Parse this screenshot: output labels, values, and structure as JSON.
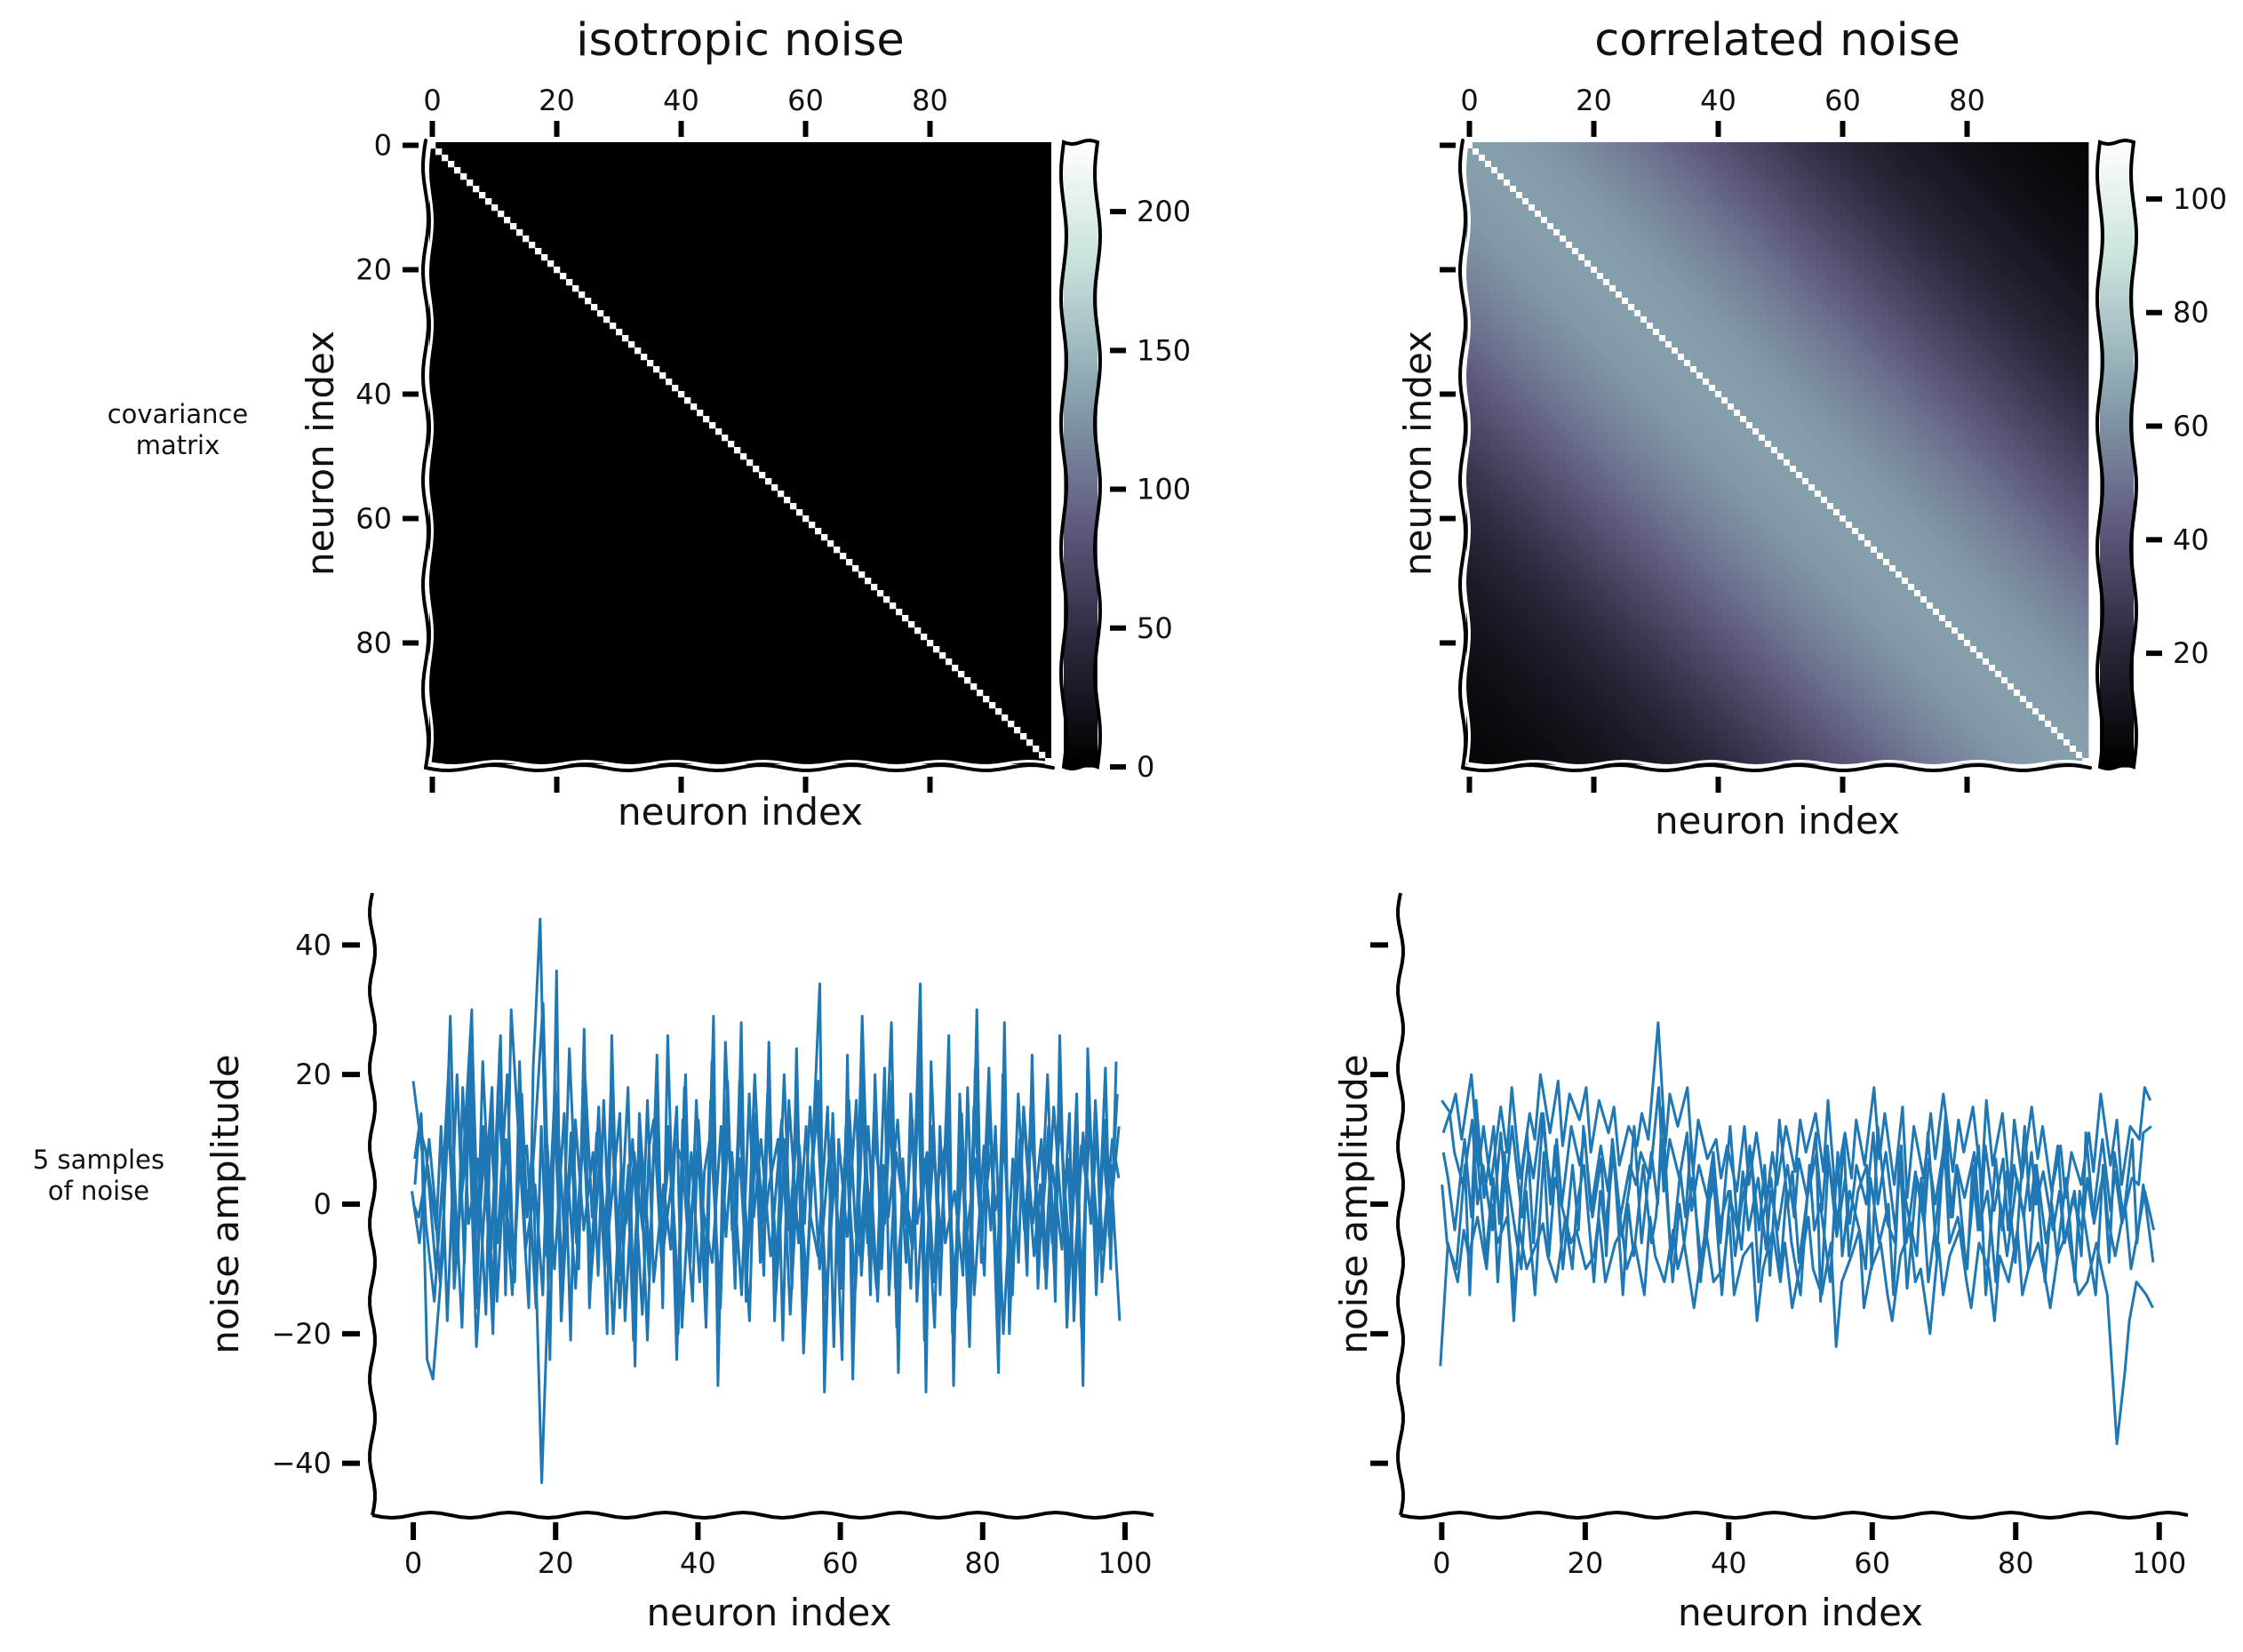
{
  "figure": {
    "row_labels": [
      [
        "covariance",
        "matrix"
      ],
      [
        "5 samples",
        "of noise"
      ]
    ]
  },
  "chart_data": [
    {
      "panel": "isotropic-covariance",
      "type": "heatmap",
      "title": "isotropic noise",
      "xlabel": "neuron index",
      "ylabel": "neuron index",
      "n": 100,
      "x_ticks": [
        0,
        20,
        40,
        60,
        80
      ],
      "y_ticks": [
        0,
        20,
        40,
        60,
        80
      ],
      "x_tick_labels_position": "top",
      "diagonal_value": 225,
      "off_diagonal_value": 0,
      "colorbar": {
        "min": 0,
        "max": 225,
        "ticks": [
          0,
          50,
          100,
          150,
          200
        ]
      },
      "colormap": [
        "#000000",
        "#2b2a3e",
        "#625f83",
        "#8aa5b0",
        "#c7e0dc",
        "#ffffff"
      ]
    },
    {
      "panel": "correlated-covariance",
      "type": "heatmap",
      "title": "correlated noise",
      "xlabel": "neuron index",
      "ylabel": "neuron index",
      "n": 100,
      "x_ticks": [
        0,
        20,
        40,
        60,
        80
      ],
      "y_ticks": [
        0,
        20,
        40,
        60,
        80
      ],
      "x_tick_labels_position": "top",
      "y_tick_labels_shown": false,
      "diagonal_value": 110,
      "near_diagonal_value": 64,
      "decay_length": 40,
      "colorbar": {
        "min": 0,
        "max": 110,
        "ticks": [
          20,
          40,
          60,
          80,
          100
        ]
      },
      "colormap": [
        "#000000",
        "#2b2a3e",
        "#625f83",
        "#8aa5b0",
        "#c7e0dc",
        "#ffffff"
      ]
    },
    {
      "panel": "isotropic-samples",
      "type": "line",
      "xlabel": "neuron index",
      "ylabel": "noise amplitude",
      "xlim": [
        -5,
        104
      ],
      "ylim": [
        -48,
        48
      ],
      "x_ticks": [
        0,
        20,
        40,
        60,
        80,
        100
      ],
      "y_ticks": [
        -40,
        -20,
        0,
        20,
        40
      ],
      "y_tick_labels": [
        "−40",
        "−20",
        "0",
        "20",
        "40"
      ],
      "line_color": "#1f77b4",
      "series": [
        {
          "values": [
            19,
            8,
            -24,
            -27,
            -8,
            29,
            3,
            -19,
            28,
            -5,
            22,
            -7,
            26,
            -14,
            30,
            5,
            -16,
            21,
            44,
            -24,
            36,
            -18,
            24,
            -10,
            27,
            -16,
            15,
            -20,
            26,
            -12,
            18,
            -25,
            11,
            -21,
            23,
            -16,
            26,
            -24,
            20,
            -9,
            16,
            -19,
            29,
            -28,
            25,
            -13,
            28,
            -15,
            20,
            -11,
            25,
            -18,
            20,
            -13,
            24,
            -23,
            11,
            34,
            -29,
            14,
            -24,
            23,
            -27,
            29,
            -14,
            20,
            -10,
            28,
            -26,
            7,
            -13,
            34,
            -29,
            22,
            -14,
            26,
            -28,
            17,
            -22,
            30,
            -9,
            21,
            -26,
            28,
            -20,
            17,
            -11,
            23,
            -13,
            20,
            -15,
            26,
            -19,
            17,
            -28,
            24,
            -14,
            21,
            -10,
            22
          ]
        },
        {
          "values": [
            7,
            14,
            -3,
            -15,
            6,
            21,
            -13,
            8,
            30,
            -16,
            12,
            -20,
            24,
            4,
            -14,
            17,
            -2,
            9,
            -43,
            -4,
            19,
            -18,
            11,
            -9,
            16,
            -13,
            8,
            -7,
            17,
            -16,
            6,
            -21,
            14,
            -11,
            20,
            -8,
            12,
            -20,
            18,
            -5,
            9,
            -14,
            22,
            -20,
            15,
            -7,
            19,
            -10,
            12,
            -3,
            17,
            -14,
            10,
            -6,
            15,
            -17,
            8,
            19,
            -20,
            7,
            -13,
            12,
            -18,
            21,
            -8,
            14,
            -4,
            19,
            -19,
            3,
            -7,
            25,
            -21,
            12,
            -8,
            18,
            -20,
            10,
            -15,
            21,
            -4,
            13,
            -18,
            20,
            -14,
            10,
            -6,
            15,
            -7,
            12,
            -9,
            18,
            -13,
            10,
            -19,
            16,
            -8,
            13,
            -5,
            17
          ]
        },
        {
          "values": [
            3,
            12,
            8,
            -10,
            4,
            16,
            -8,
            6,
            22,
            -11,
            9,
            -14,
            18,
            2,
            -10,
            12,
            -1,
            7,
            31,
            -2,
            14,
            -12,
            8,
            -6,
            11,
            -9,
            6,
            -5,
            12,
            -11,
            4,
            -15,
            10,
            -8,
            14,
            -6,
            9,
            -14,
            13,
            -3,
            7,
            -10,
            16,
            -14,
            11,
            -5,
            14,
            -7,
            9,
            -2,
            12,
            -10,
            7,
            -4,
            11,
            -12,
            6,
            14,
            -14,
            5,
            -9,
            9,
            -13,
            15,
            -6,
            10,
            -3,
            14,
            -13,
            2,
            -5,
            18,
            -15,
            9,
            -6,
            13,
            -14,
            7,
            -11,
            15,
            -3,
            9,
            -13,
            14,
            -10,
            7,
            -4,
            11,
            -5,
            9,
            -6,
            13,
            -9,
            7,
            -14,
            12,
            -6,
            9,
            -3,
            12
          ]
        },
        {
          "values": [
            0,
            -2,
            6,
            -4,
            12,
            -18,
            20,
            -9,
            15,
            -22,
            4,
            18,
            -15,
            10,
            -12,
            22,
            -7,
            3,
            -14,
            9,
            -10,
            14,
            -21,
            13,
            -4,
            8,
            -11,
            16,
            -20,
            6,
            -3,
            10,
            -17,
            9,
            13,
            -9,
            3,
            15,
            -19,
            8,
            -12,
            5,
            11,
            -16,
            19,
            -4,
            7,
            -18,
            14,
            -9,
            3,
            10,
            -21,
            16,
            -6,
            12,
            -2,
            -8,
            15,
            -22,
            10,
            -5,
            16,
            -11,
            4,
            -13,
            21,
            -14,
            8,
            -3,
            13,
            -15,
            7,
            -19,
            12,
            -6,
            2,
            -11,
            18,
            -14,
            9,
            -4,
            12,
            -20,
            7,
            -9,
            15,
            -3,
            10,
            -13,
            6,
            -7,
            14,
            -18,
            9,
            -2,
            11,
            -12,
            6,
            -18
          ]
        },
        {
          "values": [
            2,
            -6,
            10,
            0,
            -12,
            14,
            -9,
            18,
            -3,
            7,
            -17,
            13,
            -6,
            20,
            -11,
            4,
            9,
            -16,
            12,
            -8,
            17,
            -5,
            2,
            -13,
            19,
            -2,
            11,
            -10,
            5,
            14,
            -18,
            8,
            -4,
            16,
            -12,
            3,
            -7,
            10,
            6,
            -15,
            13,
            -1,
            -9,
            12,
            -5,
            8,
            -14,
            17,
            -2,
            10,
            -8,
            4,
            13,
            -17,
            9,
            -3,
            15,
            -10,
            5,
            11,
            -6,
            16,
            -4,
            -8,
            12,
            -15,
            6,
            -2,
            13,
            -9,
            17,
            -3,
            8,
            -12,
            4,
            10,
            -16,
            14,
            -5,
            7,
            -11,
            16,
            -1,
            9,
            -14,
            5,
            12,
            -8,
            3,
            -10,
            15,
            -4,
            7,
            -12,
            11,
            -3,
            16,
            -7,
            10,
            4
          ]
        }
      ]
    },
    {
      "panel": "correlated-samples",
      "type": "line",
      "xlabel": "neuron index",
      "ylabel": "noise amplitude",
      "xlim": [
        -5,
        104
      ],
      "ylim": [
        -48,
        48
      ],
      "x_ticks": [
        0,
        20,
        40,
        60,
        80,
        100
      ],
      "y_ticks": [
        -40,
        -20,
        0,
        20,
        40
      ],
      "y_tick_labels_shown": false,
      "line_color": "#1f77b4",
      "series": [
        {
          "values": [
            16,
            14,
            17,
            10,
            20,
            6,
            12,
            3,
            15,
            8,
            18,
            4,
            14,
            10,
            20,
            11,
            19,
            9,
            17,
            13,
            18,
            8,
            16,
            11,
            15,
            6,
            12,
            9,
            14,
            10,
            28,
            9,
            17,
            12,
            18,
            5,
            13,
            7,
            10,
            4,
            9,
            2,
            12,
            3,
            11,
            0,
            8,
            3,
            12,
            5,
            13,
            8,
            14,
            5,
            16,
            2,
            11,
            4,
            13,
            6,
            18,
            7,
            14,
            3,
            15,
            1,
            12,
            4,
            14,
            7,
            17,
            5,
            13,
            8,
            15,
            3,
            16,
            6,
            14,
            2,
            13,
            4,
            15,
            7,
            12,
            2,
            9,
            1,
            8,
            3,
            11,
            5,
            17,
            6,
            13,
            3,
            12,
            10,
            18,
            16
          ]
        },
        {
          "values": [
            11,
            14,
            8,
            3,
            13,
            0,
            6,
            -4,
            11,
            2,
            12,
            -2,
            8,
            4,
            14,
            2,
            10,
            0,
            12,
            6,
            11,
            -1,
            9,
            2,
            10,
            -2,
            6,
            3,
            8,
            4,
            18,
            2,
            10,
            4,
            11,
            -1,
            6,
            0,
            4,
            -3,
            2,
            -4,
            5,
            -4,
            4,
            -7,
            2,
            -4,
            6,
            -2,
            7,
            1,
            8,
            -1,
            9,
            -5,
            4,
            -3,
            6,
            0,
            11,
            0,
            8,
            -4,
            9,
            -6,
            5,
            -3,
            7,
            0,
            10,
            -2,
            6,
            1,
            8,
            -4,
            9,
            -1,
            7,
            -4,
            6,
            -2,
            8,
            0,
            5,
            -4,
            2,
            -6,
            1,
            -4,
            4,
            -2,
            10,
            -1,
            5,
            -3,
            4,
            3,
            11,
            12
          ]
        },
        {
          "values": [
            8,
            4,
            -4,
            10,
            -2,
            16,
            1,
            12,
            -3,
            8,
            -18,
            5,
            11,
            -6,
            14,
            0,
            9,
            -10,
            6,
            -4,
            12,
            -2,
            7,
            -8,
            10,
            -5,
            3,
            12,
            -6,
            8,
            0,
            15,
            -9,
            5,
            -2,
            10,
            -12,
            3,
            8,
            -6,
            12,
            -2,
            -7,
            9,
            -4,
            6,
            -11,
            13,
            0,
            5,
            -9,
            3,
            11,
            -15,
            7,
            -3,
            10,
            -8,
            2,
            6,
            -10,
            12,
            -3,
            -6,
            8,
            -13,
            4,
            0,
            11,
            -8,
            14,
            -2,
            6,
            -10,
            3,
            9,
            -14,
            7,
            -4,
            5,
            -9,
            12,
            -1,
            6,
            -12,
            4,
            9,
            -6,
            2,
            -8,
            11,
            -3,
            5,
            -9,
            8,
            -2,
            10,
            -6,
            3,
            -9
          ]
        },
        {
          "values": [
            3,
            -6,
            -10,
            6,
            -14,
            10,
            -8,
            4,
            -12,
            6,
            -4,
            -10,
            2,
            -14,
            8,
            -8,
            4,
            -2,
            -10,
            0,
            6,
            -12,
            2,
            -4,
            8,
            -14,
            0,
            -8,
            6,
            -6,
            -2,
            10,
            -12,
            0,
            -6,
            4,
            -10,
            -4,
            6,
            -14,
            2,
            -8,
            0,
            8,
            -12,
            -2,
            4,
            -10,
            2,
            -6,
            -14,
            6,
            -4,
            0,
            -12,
            8,
            -8,
            2,
            -4,
            -10,
            4,
            -6,
            0,
            -14,
            6,
            -2,
            -8,
            4,
            -12,
            0,
            8,
            -6,
            -2,
            -10,
            6,
            -4,
            2,
            -12,
            0,
            -8,
            4,
            -2,
            -10,
            6,
            -6,
            0,
            -8,
            4,
            -12,
            2,
            -4,
            -14,
            6,
            -2,
            -8,
            0,
            -10,
            -6,
            2,
            -4
          ]
        },
        {
          "values": [
            -25,
            -6,
            -12,
            -4,
            -8,
            -2,
            -10,
            0,
            -6,
            -2,
            -14,
            -4,
            -10,
            -6,
            -3,
            -8,
            -12,
            -2,
            -6,
            -4,
            -10,
            -8,
            -2,
            -12,
            -6,
            -4,
            -10,
            -6,
            -14,
            -2,
            -8,
            -12,
            -4,
            -10,
            -6,
            -16,
            -8,
            -4,
            -12,
            -10,
            -2,
            -14,
            -8,
            -6,
            -18,
            -10,
            -4,
            -12,
            -6,
            -16,
            -8,
            -2,
            -10,
            -14,
            -6,
            -22,
            -12,
            -8,
            -4,
            -16,
            -10,
            -6,
            -14,
            -18,
            -8,
            -4,
            -12,
            -10,
            -20,
            -6,
            -14,
            -8,
            -4,
            -12,
            -16,
            -6,
            -10,
            -18,
            -8,
            -12,
            -4,
            -14,
            -10,
            -6,
            -12,
            -16,
            -8,
            -4,
            -10,
            -14,
            -12,
            -6,
            -10,
            -14,
            -37,
            -26,
            -18,
            -12,
            -14,
            -16
          ]
        }
      ]
    }
  ]
}
